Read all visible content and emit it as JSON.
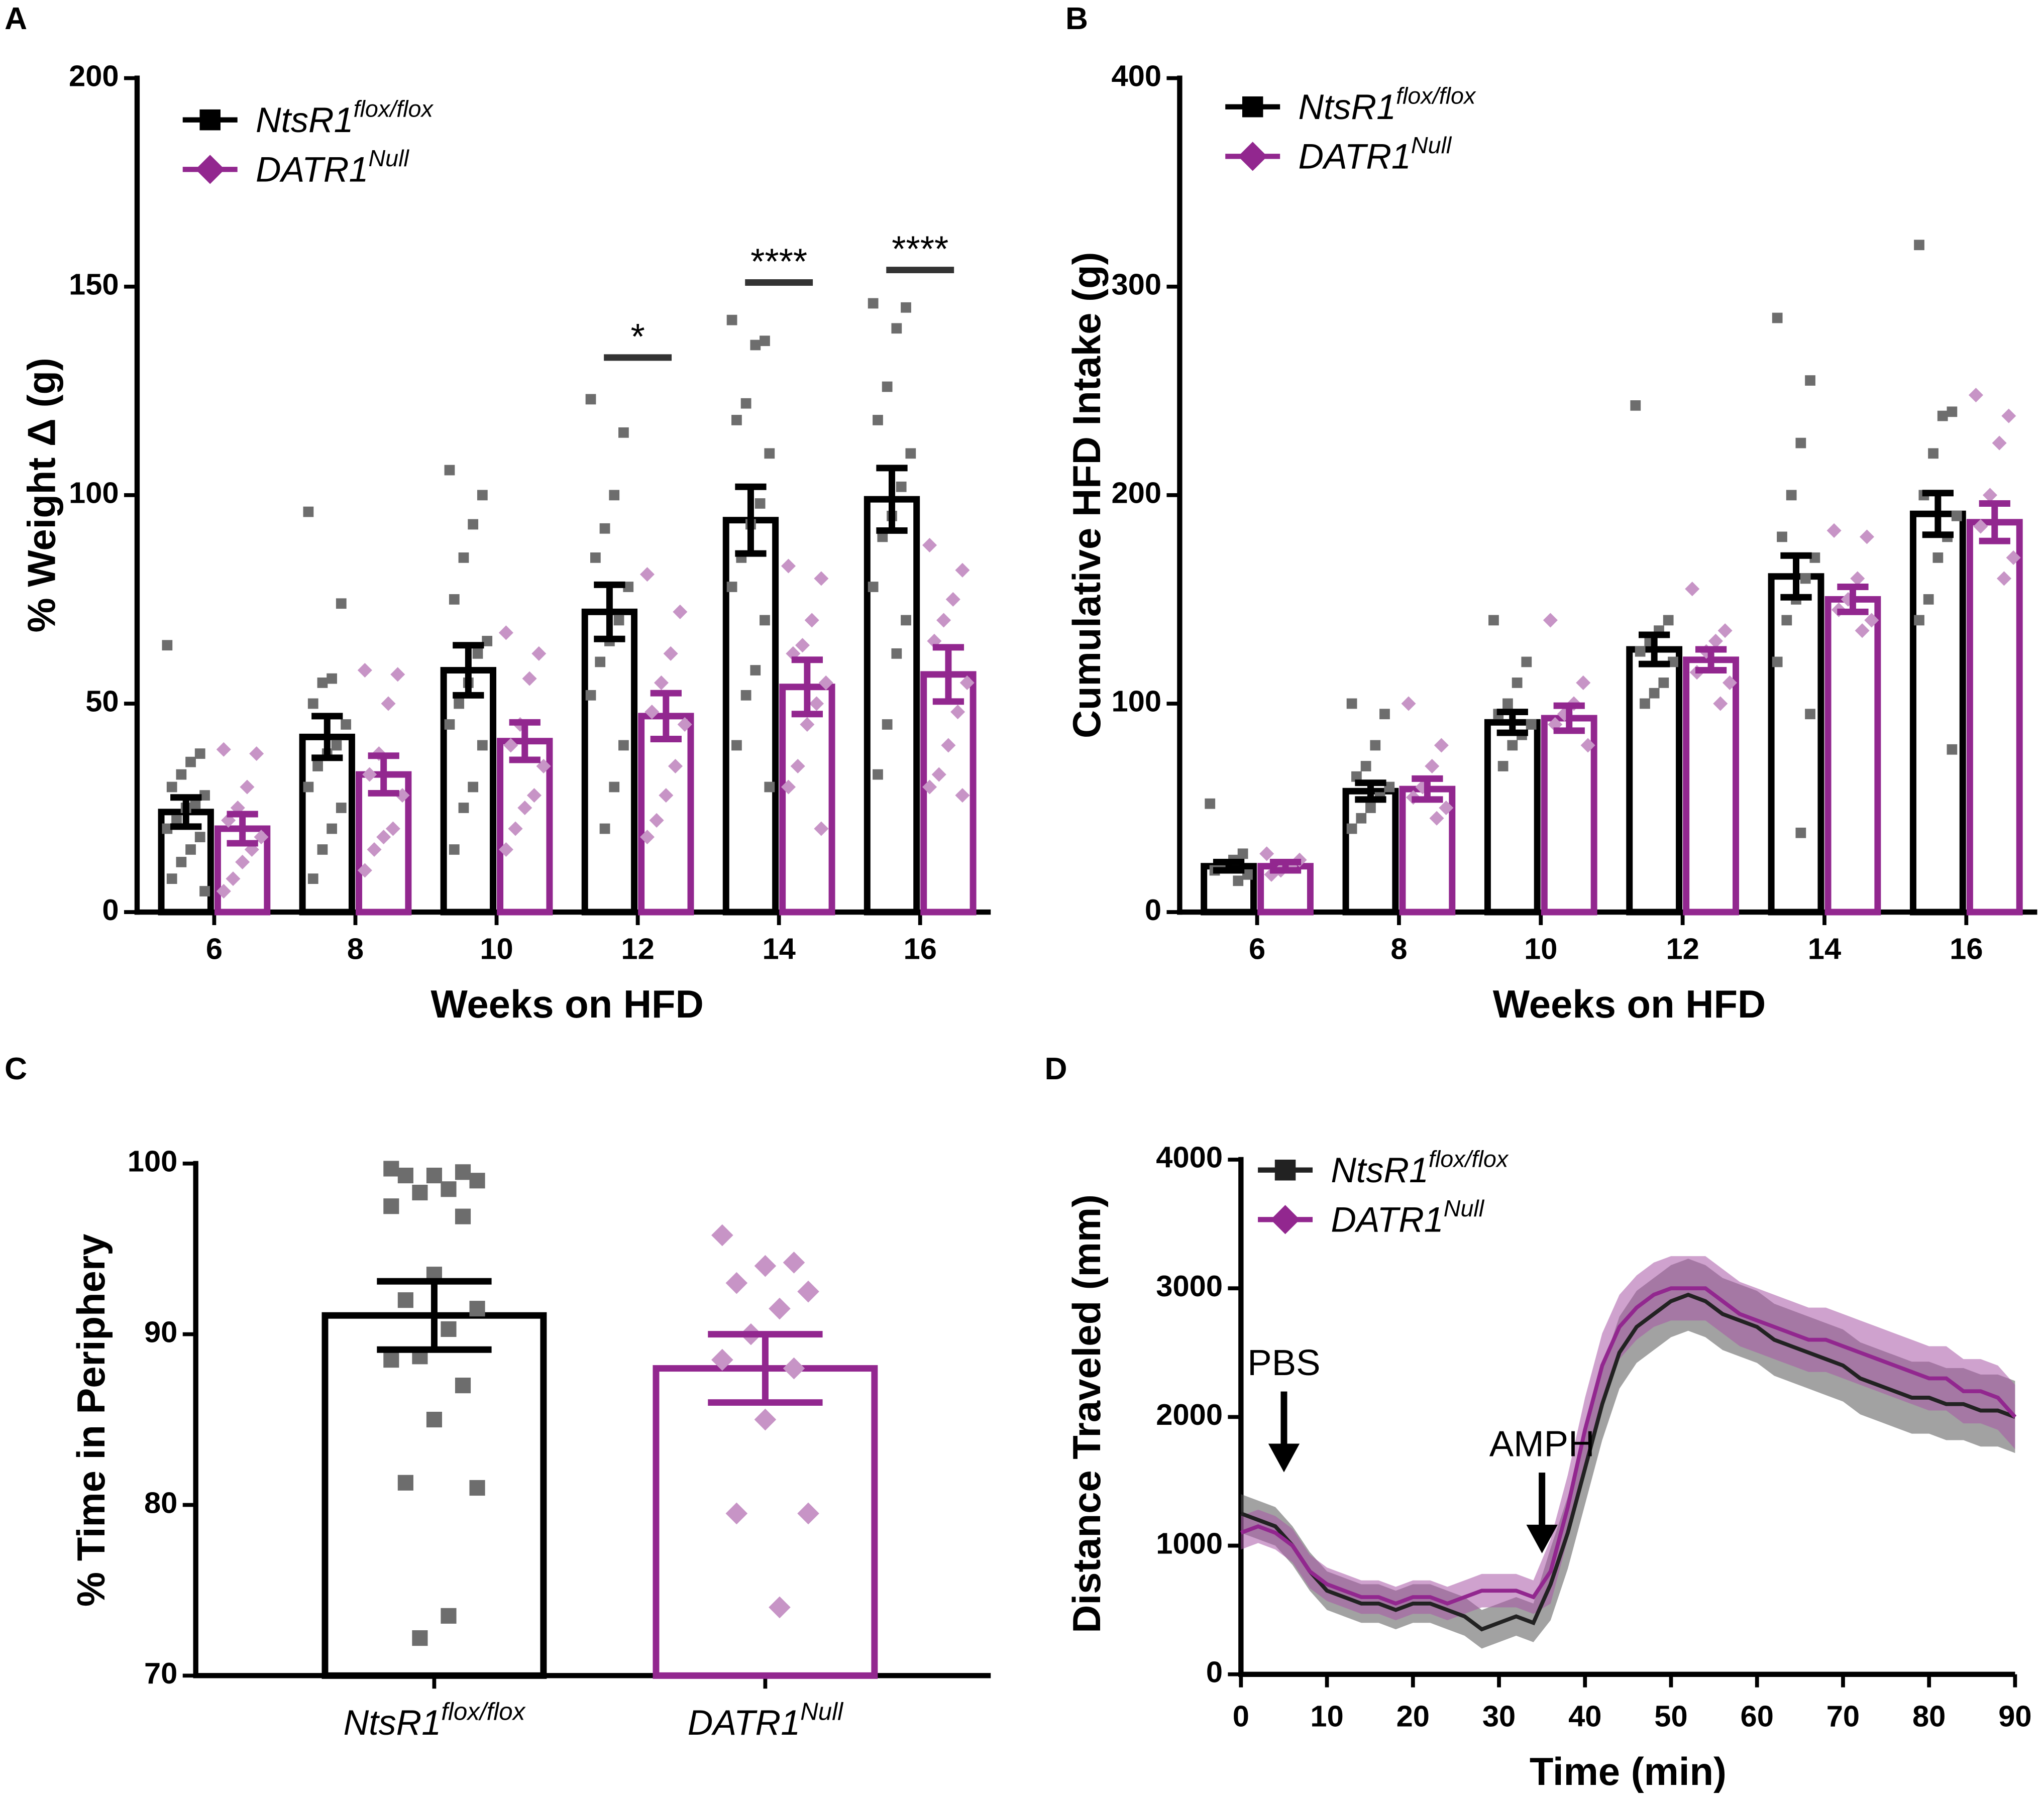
{
  "chart_data": [
    {
      "type": "grouped_bar",
      "label": "A",
      "ylabel": "% Weight Δ (g)",
      "xlabel": "Weeks on HFD",
      "categories": [
        "6",
        "8",
        "10",
        "12",
        "14",
        "16"
      ],
      "ylim": [
        0,
        200
      ],
      "yticks": [
        0,
        50,
        100,
        150,
        200
      ],
      "legend": "upper left",
      "series": [
        {
          "name": "NtsR1",
          "name_sup": "flox/flox",
          "color": "#000000",
          "point_color": "#6d6d6d",
          "marker": "square",
          "values": [
            24,
            42,
            58,
            72,
            94,
            99
          ],
          "errors": [
            3.5,
            5,
            6,
            6.5,
            8,
            7.5
          ],
          "points": [
            [
              64,
              38,
              36,
              33,
              30,
              28,
              26,
              25,
              22,
              20,
              18,
              15,
              12,
              8,
              5
            ],
            [
              96,
              74,
              56,
              55,
              50,
              45,
              40,
              38,
              35,
              30,
              25,
              20,
              15,
              8
            ],
            [
              106,
              100,
              93,
              85,
              75,
              65,
              62,
              55,
              50,
              45,
              40,
              30,
              25,
              15
            ],
            [
              123,
              115,
              100,
              92,
              85,
              78,
              70,
              65,
              60,
              52,
              40,
              30,
              20
            ],
            [
              142,
              137,
              136,
              122,
              118,
              110,
              98,
              93,
              85,
              78,
              70,
              58,
              52,
              40,
              30
            ],
            [
              146,
              145,
              140,
              126,
              118,
              110,
              102,
              95,
              90,
              78,
              70,
              62,
              45,
              33
            ]
          ]
        },
        {
          "name": "DATR1",
          "name_sup": "Null",
          "color": "#92278f",
          "point_color": "#c794c6",
          "marker": "diamond",
          "values": [
            20,
            33,
            41,
            47,
            54,
            57
          ],
          "errors": [
            3.5,
            4.5,
            4.5,
            5.5,
            6.5,
            6.5
          ],
          "points": [
            [
              39,
              38,
              30,
              25,
              22,
              18,
              15,
              12,
              8,
              5
            ],
            [
              58,
              57,
              50,
              38,
              33,
              28,
              20,
              18,
              15,
              10
            ],
            [
              67,
              62,
              56,
              45,
              40,
              35,
              28,
              25,
              20,
              15
            ],
            [
              81,
              72,
              62,
              55,
              48,
              45,
              35,
              28,
              22,
              18
            ],
            [
              83,
              80,
              70,
              64,
              62,
              55,
              50,
              45,
              35,
              30,
              20
            ],
            [
              88,
              82,
              75,
              70,
              65,
              55,
              48,
              40,
              33,
              30,
              28
            ]
          ]
        }
      ],
      "annotations": [
        {
          "x": "12",
          "y": 133,
          "text": "*"
        },
        {
          "x": "14",
          "y": 151,
          "text": "****"
        },
        {
          "x": "16",
          "y": 154,
          "text": "****"
        }
      ]
    },
    {
      "type": "grouped_bar",
      "label": "B",
      "ylabel": "Cumulative HFD Intake (g)",
      "xlabel": "Weeks on HFD",
      "categories": [
        "6",
        "8",
        "10",
        "12",
        "14",
        "16"
      ],
      "ylim": [
        0,
        400
      ],
      "yticks": [
        0,
        100,
        200,
        300,
        400
      ],
      "legend": "upper left",
      "series": [
        {
          "name": "NtsR1",
          "name_sup": "flox/flox",
          "color": "#000000",
          "point_color": "#6d6d6d",
          "marker": "square",
          "values": [
            22,
            58,
            91,
            126,
            161,
            191
          ],
          "errors": [
            2,
            4,
            5,
            7,
            10,
            10
          ],
          "points": [
            [
              52,
              28,
              25,
              22,
              20,
              18,
              15
            ],
            [
              100,
              95,
              80,
              70,
              65,
              60,
              55,
              50,
              45,
              40
            ],
            [
              140,
              120,
              110,
              100,
              95,
              90,
              85,
              80,
              70
            ],
            [
              243,
              140,
              135,
              130,
              125,
              120,
              110,
              105,
              100
            ],
            [
              285,
              255,
              225,
              200,
              180,
              170,
              160,
              150,
              140,
              120,
              95,
              38
            ],
            [
              320,
              240,
              238,
              220,
              200,
              190,
              180,
              170,
              150,
              140,
              78
            ]
          ]
        },
        {
          "name": "DATR1",
          "name_sup": "Null",
          "color": "#92278f",
          "point_color": "#c794c6",
          "marker": "diamond",
          "values": [
            22,
            59,
            93,
            121,
            150,
            187
          ],
          "errors": [
            2,
            5,
            6,
            5,
            6,
            9
          ],
          "points": [
            [
              28,
              25,
              22,
              20,
              18
            ],
            [
              100,
              80,
              70,
              60,
              55,
              50,
              45
            ],
            [
              140,
              110,
              100,
              95,
              90,
              80
            ],
            [
              155,
              135,
              130,
              125,
              115,
              110,
              100
            ],
            [
              183,
              180,
              160,
              150,
              145,
              140,
              135
            ],
            [
              248,
              238,
              225,
              200,
              185,
              170,
              160
            ]
          ]
        }
      ]
    },
    {
      "type": "bar",
      "label": "C",
      "ylabel": "% Time in Periphery",
      "categories": [
        "NtsR1",
        "DATR1"
      ],
      "category_superscripts": [
        "flox/flox",
        "Null"
      ],
      "ylim": [
        70,
        100
      ],
      "yticks": [
        70,
        80,
        90,
        100
      ],
      "values": [
        91.1,
        88.0
      ],
      "errors": [
        2.0,
        2.0
      ],
      "colors": [
        "#000000",
        "#92278f"
      ],
      "point_colors": [
        "#6d6d6d",
        "#c794c6"
      ],
      "markers": [
        "square",
        "diamond"
      ],
      "points": [
        [
          99.7,
          99.5,
          99.3,
          99.3,
          99.0,
          98.5,
          98.3,
          97.5,
          96.9,
          93.5,
          92.0,
          91.5,
          90.3,
          88.7,
          88.5,
          87.0,
          85.0,
          81.3,
          81.0,
          73.5,
          72.2
        ],
        [
          95.8,
          94.2,
          94.0,
          93.0,
          92.5,
          91.5,
          90.0,
          88.5,
          88.0,
          85.0,
          79.5,
          79.5,
          74.0
        ]
      ]
    },
    {
      "type": "line",
      "label": "D",
      "ylabel": "Distance Traveled (mm)",
      "xlabel": "Time (min)",
      "xlim": [
        0,
        90
      ],
      "xticks": [
        0,
        10,
        20,
        30,
        40,
        50,
        60,
        70,
        80,
        90
      ],
      "ylim": [
        0,
        4000
      ],
      "yticks": [
        0,
        1000,
        2000,
        3000,
        4000
      ],
      "legend": "upper left",
      "x": [
        0,
        2,
        4,
        6,
        8,
        10,
        12,
        14,
        16,
        18,
        20,
        22,
        24,
        26,
        28,
        30,
        32,
        34,
        36,
        38,
        40,
        42,
        44,
        46,
        48,
        50,
        52,
        54,
        56,
        58,
        60,
        62,
        64,
        66,
        68,
        70,
        72,
        74,
        76,
        78,
        80,
        82,
        84,
        86,
        88,
        90
      ],
      "series": [
        {
          "name": "NtsR1",
          "name_sup": "flox/flox",
          "color": "#222222",
          "band_color": "#555555",
          "marker": "square",
          "values": [
            1250,
            1200,
            1150,
            1000,
            800,
            650,
            600,
            550,
            550,
            500,
            550,
            550,
            500,
            450,
            350,
            400,
            450,
            400,
            700,
            1100,
            1600,
            2100,
            2500,
            2700,
            2800,
            2900,
            2950,
            2900,
            2800,
            2750,
            2700,
            2600,
            2550,
            2500,
            2450,
            2400,
            2300,
            2250,
            2200,
            2150,
            2150,
            2100,
            2100,
            2050,
            2050,
            2000
          ],
          "errors": [
            150,
            150,
            150,
            150,
            150,
            150,
            150,
            150,
            150,
            150,
            150,
            150,
            150,
            150,
            150,
            150,
            150,
            150,
            280,
            280,
            280,
            280,
            280,
            280,
            280,
            280,
            280,
            280,
            280,
            280,
            280,
            280,
            280,
            280,
            280,
            280,
            280,
            280,
            280,
            280,
            280,
            280,
            280,
            280,
            280,
            280
          ]
        },
        {
          "name": "DATR1",
          "name_sup": "Null",
          "color": "#92278f",
          "band_color": "#a855a5",
          "marker": "diamond",
          "values": [
            1100,
            1150,
            1100,
            1000,
            800,
            700,
            650,
            600,
            600,
            550,
            600,
            600,
            550,
            600,
            650,
            650,
            650,
            600,
            800,
            1300,
            1900,
            2400,
            2700,
            2850,
            2950,
            3000,
            3000,
            3000,
            2900,
            2800,
            2750,
            2700,
            2650,
            2600,
            2600,
            2550,
            2500,
            2450,
            2400,
            2350,
            2300,
            2300,
            2200,
            2200,
            2150,
            2000
          ],
          "errors": [
            130,
            130,
            130,
            130,
            130,
            130,
            130,
            130,
            130,
            130,
            130,
            130,
            130,
            130,
            130,
            130,
            130,
            130,
            250,
            250,
            250,
            250,
            250,
            250,
            250,
            250,
            250,
            250,
            250,
            250,
            250,
            250,
            250,
            250,
            250,
            250,
            250,
            250,
            250,
            250,
            250,
            250,
            250,
            250,
            250,
            250
          ]
        }
      ],
      "annotations": [
        {
          "x": 5,
          "y": 1570,
          "text": "PBS"
        },
        {
          "x": 35,
          "y": 940,
          "text": "AMPH"
        }
      ]
    }
  ]
}
